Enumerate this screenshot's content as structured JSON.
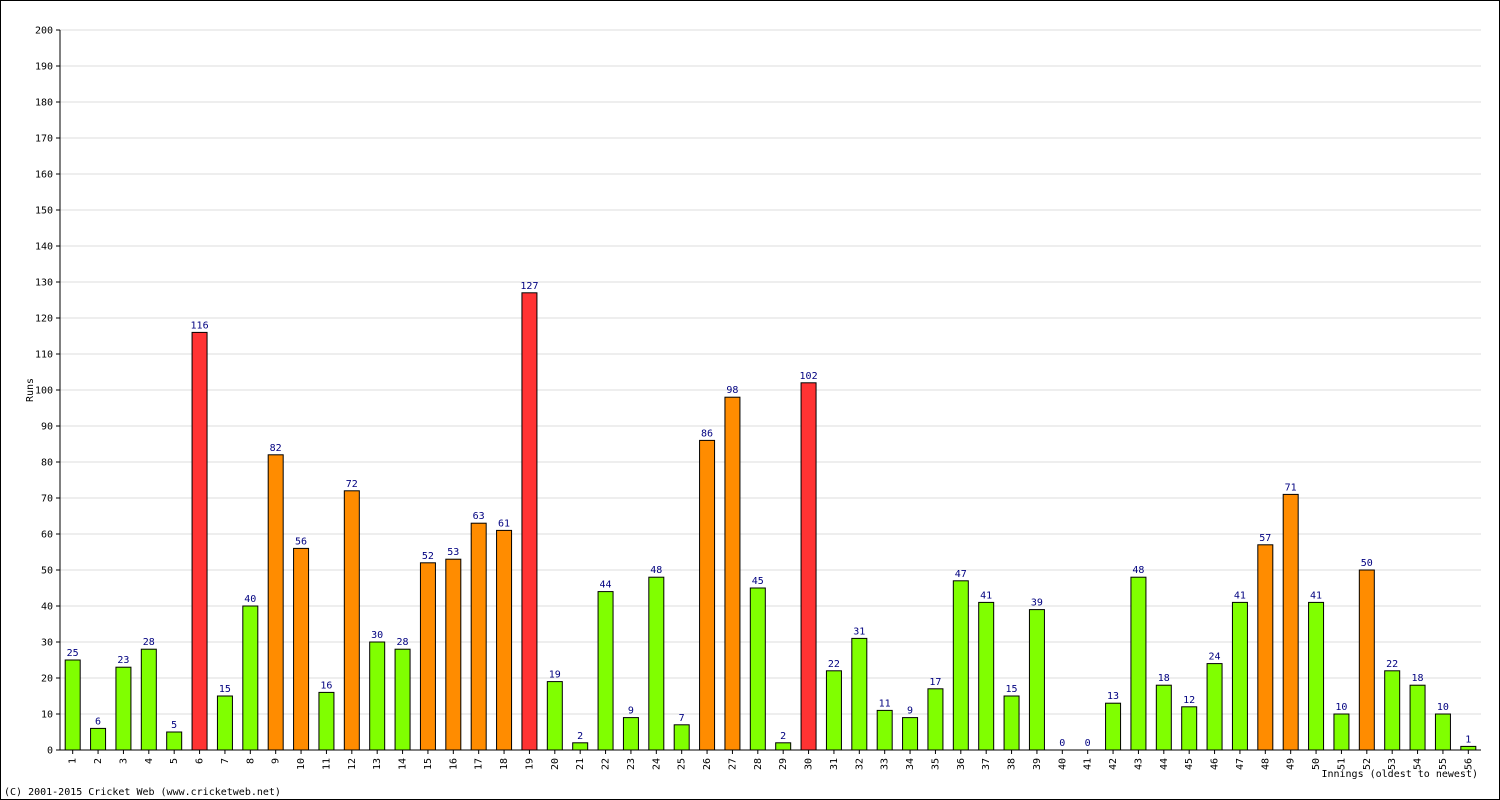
{
  "chart_data": {
    "type": "bar",
    "y_label": "Runs",
    "x_label": "Innings (oldest to newest)",
    "footer": "(C) 2001-2015 Cricket Web (www.cricketweb.net)",
    "categories": [
      "1",
      "2",
      "3",
      "4",
      "5",
      "6",
      "7",
      "8",
      "9",
      "10",
      "11",
      "12",
      "13",
      "14",
      "15",
      "16",
      "17",
      "18",
      "19",
      "20",
      "21",
      "22",
      "23",
      "24",
      "25",
      "26",
      "27",
      "28",
      "29",
      "30",
      "31",
      "32",
      "33",
      "34",
      "35",
      "36",
      "37",
      "38",
      "39",
      "40",
      "41",
      "42",
      "43",
      "44",
      "45",
      "46",
      "47",
      "48",
      "49",
      "50",
      "51",
      "52",
      "53",
      "54",
      "55",
      "56"
    ],
    "values": [
      25,
      6,
      23,
      28,
      5,
      116,
      15,
      40,
      82,
      56,
      16,
      72,
      30,
      28,
      52,
      53,
      63,
      61,
      127,
      19,
      2,
      44,
      9,
      48,
      7,
      86,
      98,
      45,
      2,
      102,
      22,
      31,
      11,
      9,
      17,
      47,
      41,
      15,
      39,
      0,
      0,
      13,
      48,
      18,
      12,
      24,
      41,
      57,
      71,
      41,
      10,
      50,
      22,
      18,
      10,
      1
    ],
    "colors": [
      "#80ff00",
      "#80ff00",
      "#80ff00",
      "#80ff00",
      "#80ff00",
      "#ff3333",
      "#80ff00",
      "#80ff00",
      "#ff8c00",
      "#ff8c00",
      "#80ff00",
      "#ff8c00",
      "#80ff00",
      "#80ff00",
      "#ff8c00",
      "#ff8c00",
      "#ff8c00",
      "#ff8c00",
      "#ff3333",
      "#80ff00",
      "#80ff00",
      "#80ff00",
      "#80ff00",
      "#80ff00",
      "#80ff00",
      "#ff8c00",
      "#ff8c00",
      "#80ff00",
      "#80ff00",
      "#ff3333",
      "#80ff00",
      "#80ff00",
      "#80ff00",
      "#80ff00",
      "#80ff00",
      "#80ff00",
      "#80ff00",
      "#80ff00",
      "#80ff00",
      "#80ff00",
      "#80ff00",
      "#80ff00",
      "#80ff00",
      "#80ff00",
      "#80ff00",
      "#80ff00",
      "#80ff00",
      "#ff8c00",
      "#ff8c00",
      "#80ff00",
      "#80ff00",
      "#ff8c00",
      "#80ff00",
      "#80ff00",
      "#80ff00",
      "#80ff00"
    ],
    "ylim": [
      0,
      200
    ],
    "yticks": [
      0,
      10,
      20,
      30,
      40,
      50,
      60,
      70,
      80,
      90,
      100,
      110,
      120,
      130,
      140,
      150,
      160,
      170,
      180,
      190,
      200
    ],
    "grid": true
  }
}
